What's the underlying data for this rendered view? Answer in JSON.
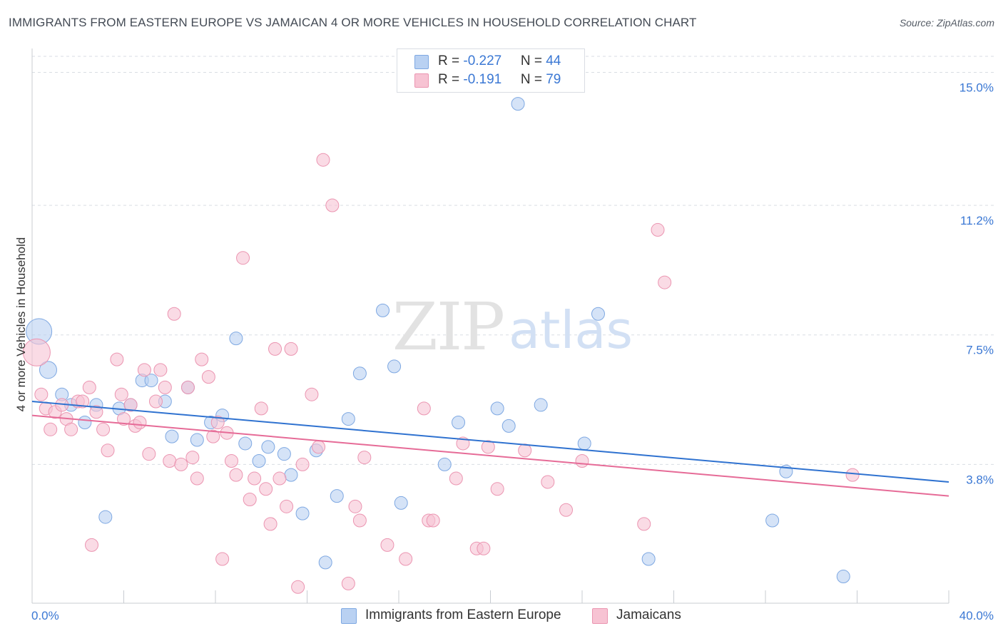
{
  "title": "IMMIGRANTS FROM EASTERN EUROPE VS JAMAICAN 4 OR MORE VEHICLES IN HOUSEHOLD CORRELATION CHART",
  "source": "Source: ZipAtlas.com",
  "watermark": {
    "zip": "ZIP",
    "atlas": "atlas"
  },
  "legend": {
    "rows": [
      {
        "r_label": "R = ",
        "r_value": "-0.227",
        "n_label": "N = ",
        "n_value": "44"
      },
      {
        "r_label": "R = ",
        "r_value": "-0.191",
        "n_label": "N = ",
        "n_value": "79"
      }
    ]
  },
  "colors": {
    "blue_fill": "#b9d1f2",
    "blue_stroke": "#7ea8e2",
    "blue_line": "#2f72d0",
    "pink_fill": "#f7c3d3",
    "pink_stroke": "#eb95b1",
    "pink_line": "#e66b97",
    "tick_label": "#3b78d4",
    "grid": "#d9dde3"
  },
  "chart_data": {
    "type": "scatter",
    "title": "IMMIGRANTS FROM EASTERN EUROPE VS JAMAICAN 4 OR MORE VEHICLES IN HOUSEHOLD CORRELATION CHART",
    "xlabel": "",
    "ylabel": "4 or more Vehicles in Household",
    "xlim": [
      0,
      40
    ],
    "ylim": [
      0,
      15.6
    ],
    "x_tick_labels": [
      "0.0%",
      "40.0%"
    ],
    "y_ticks": [
      3.8,
      7.5,
      11.2,
      15.0
    ],
    "y_tick_labels": [
      "3.8%",
      "7.5%",
      "11.2%",
      "15.0%"
    ],
    "grid": "horizontal dashed",
    "legend_placement": "bottom",
    "series": [
      {
        "name": "Immigrants from Eastern Europe",
        "color": "#7ea8e2",
        "trend": {
          "x": [
            0,
            40
          ],
          "y": [
            5.6,
            3.3
          ]
        },
        "points": [
          [
            0.3,
            7.6
          ],
          [
            0.7,
            6.5
          ],
          [
            1.3,
            5.8
          ],
          [
            1.7,
            5.5
          ],
          [
            2.3,
            5.0
          ],
          [
            2.8,
            5.5
          ],
          [
            3.2,
            2.3
          ],
          [
            3.8,
            5.4
          ],
          [
            4.3,
            5.5
          ],
          [
            4.8,
            6.2
          ],
          [
            5.2,
            6.2
          ],
          [
            5.8,
            5.6
          ],
          [
            6.1,
            4.6
          ],
          [
            6.8,
            6.0
          ],
          [
            7.2,
            4.5
          ],
          [
            7.8,
            5.0
          ],
          [
            8.3,
            5.2
          ],
          [
            8.9,
            7.4
          ],
          [
            9.3,
            4.4
          ],
          [
            9.9,
            3.9
          ],
          [
            10.3,
            4.3
          ],
          [
            11.0,
            4.1
          ],
          [
            11.3,
            3.5
          ],
          [
            11.8,
            2.4
          ],
          [
            12.4,
            4.2
          ],
          [
            12.8,
            1.0
          ],
          [
            13.3,
            2.9
          ],
          [
            13.8,
            5.1
          ],
          [
            14.3,
            6.4
          ],
          [
            15.3,
            8.2
          ],
          [
            15.8,
            6.6
          ],
          [
            16.1,
            2.7
          ],
          [
            18.0,
            3.8
          ],
          [
            18.6,
            5.0
          ],
          [
            20.3,
            5.4
          ],
          [
            20.8,
            4.9
          ],
          [
            21.2,
            14.1
          ],
          [
            22.2,
            5.5
          ],
          [
            24.1,
            4.4
          ],
          [
            24.7,
            8.1
          ],
          [
            26.9,
            1.1
          ],
          [
            32.3,
            2.2
          ],
          [
            32.9,
            3.6
          ],
          [
            35.4,
            0.6
          ]
        ]
      },
      {
        "name": "Jamaicans",
        "color": "#eb95b1",
        "trend": {
          "x": [
            0,
            40
          ],
          "y": [
            5.2,
            2.9
          ]
        },
        "points": [
          [
            0.2,
            7.0
          ],
          [
            0.4,
            5.8
          ],
          [
            0.6,
            5.4
          ],
          [
            0.8,
            4.8
          ],
          [
            1.0,
            5.3
          ],
          [
            1.3,
            5.5
          ],
          [
            1.5,
            5.1
          ],
          [
            1.7,
            4.8
          ],
          [
            2.0,
            5.6
          ],
          [
            2.2,
            5.6
          ],
          [
            2.5,
            6.0
          ],
          [
            2.8,
            5.3
          ],
          [
            2.6,
            1.5
          ],
          [
            3.1,
            4.8
          ],
          [
            3.3,
            4.2
          ],
          [
            3.7,
            6.8
          ],
          [
            3.9,
            5.8
          ],
          [
            4.0,
            5.1
          ],
          [
            4.3,
            5.5
          ],
          [
            4.5,
            4.9
          ],
          [
            4.7,
            5.0
          ],
          [
            4.9,
            6.5
          ],
          [
            5.1,
            4.1
          ],
          [
            5.4,
            5.6
          ],
          [
            5.6,
            6.5
          ],
          [
            5.8,
            6.0
          ],
          [
            6.0,
            3.9
          ],
          [
            6.2,
            8.1
          ],
          [
            6.5,
            3.8
          ],
          [
            6.8,
            6.0
          ],
          [
            7.0,
            4.0
          ],
          [
            7.2,
            3.4
          ],
          [
            7.4,
            6.8
          ],
          [
            7.7,
            6.3
          ],
          [
            7.9,
            4.6
          ],
          [
            8.1,
            5.0
          ],
          [
            8.3,
            1.1
          ],
          [
            8.5,
            4.7
          ],
          [
            8.7,
            3.9
          ],
          [
            8.9,
            3.5
          ],
          [
            9.2,
            9.7
          ],
          [
            9.5,
            2.8
          ],
          [
            9.7,
            3.4
          ],
          [
            10.0,
            5.4
          ],
          [
            10.2,
            3.1
          ],
          [
            10.4,
            2.1
          ],
          [
            10.6,
            7.1
          ],
          [
            10.8,
            3.4
          ],
          [
            11.1,
            2.6
          ],
          [
            11.3,
            7.1
          ],
          [
            11.6,
            0.3
          ],
          [
            11.8,
            3.8
          ],
          [
            12.2,
            5.8
          ],
          [
            12.5,
            4.3
          ],
          [
            12.7,
            12.5
          ],
          [
            13.1,
            11.2
          ],
          [
            13.8,
            0.4
          ],
          [
            14.1,
            2.6
          ],
          [
            14.3,
            2.2
          ],
          [
            14.5,
            4.0
          ],
          [
            15.5,
            1.5
          ],
          [
            16.3,
            1.1
          ],
          [
            17.1,
            5.4
          ],
          [
            17.3,
            2.2
          ],
          [
            17.5,
            2.2
          ],
          [
            18.5,
            3.4
          ],
          [
            18.8,
            4.4
          ],
          [
            19.4,
            1.4
          ],
          [
            19.7,
            1.4
          ],
          [
            19.9,
            4.3
          ],
          [
            20.3,
            3.1
          ],
          [
            21.5,
            4.2
          ],
          [
            22.5,
            3.3
          ],
          [
            23.3,
            2.5
          ],
          [
            24.0,
            3.9
          ],
          [
            26.7,
            2.1
          ],
          [
            27.3,
            10.5
          ],
          [
            27.6,
            9.0
          ],
          [
            35.8,
            3.5
          ]
        ]
      }
    ]
  },
  "bottom_legend": [
    "Immigrants from Eastern Europe",
    "Jamaicans"
  ]
}
